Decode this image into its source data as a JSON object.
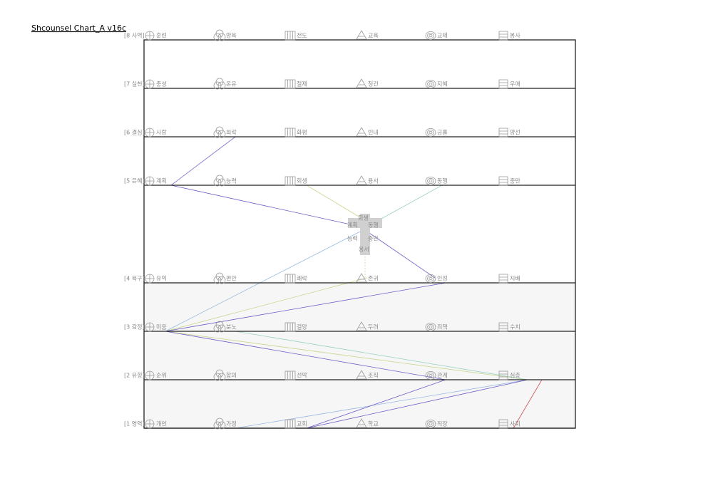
{
  "header": {
    "title": "Shcounsel Chart_A v16c"
  },
  "rows": [
    {
      "label": "[8 사역]",
      "items": [
        "훈련",
        "양육",
        "전도",
        "교육",
        "교제",
        "봉사"
      ]
    },
    {
      "label": "[7 실천]",
      "items": [
        "충성",
        "온유",
        "절제",
        "청건",
        "지혜",
        "우애"
      ]
    },
    {
      "label": "[6 결심]",
      "items": [
        "사랑",
        "희락",
        "화평",
        "인내",
        "긍휼",
        "양선"
      ]
    },
    {
      "label": "[5 은혜]",
      "items": [
        "계획",
        "능력",
        "회생",
        "용서",
        "동행",
        "충만"
      ]
    },
    {
      "label": "[4 욕구]",
      "items": [
        "유익",
        "편안",
        "쾌락",
        "존귀",
        "인정",
        "지배"
      ]
    },
    {
      "label": "[3 감정]",
      "items": [
        "미움",
        "분노",
        "걸망",
        "두려",
        "죄책",
        "수치"
      ]
    },
    {
      "label": "[2 유형]",
      "items": [
        "순위",
        "합의",
        "선악",
        "조직",
        "관계",
        "심층"
      ]
    },
    {
      "label": "[1 영역]",
      "items": [
        "개인",
        "가정",
        "교회",
        "학교",
        "직장",
        "사회"
      ]
    }
  ],
  "center": {
    "top": "회생",
    "left_top": "계획",
    "right_top": "동행",
    "left_bottom": "능력",
    "right_bottom": "충만",
    "bottom": "용서"
  }
}
